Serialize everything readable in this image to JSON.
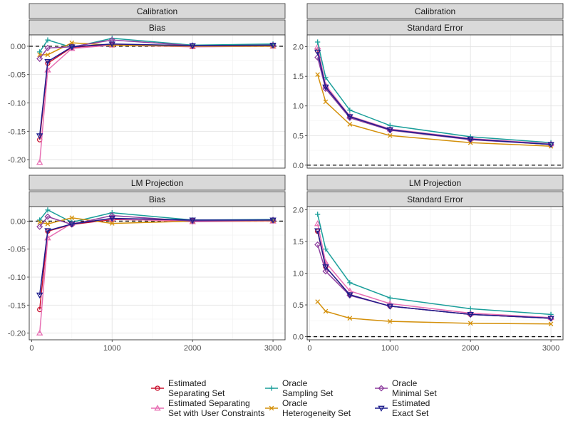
{
  "chart_data": [
    {
      "type": "line",
      "strip_top": "Calibration",
      "strip_sub": "Bias",
      "x": [
        100,
        200,
        500,
        1000,
        2000,
        3000
      ],
      "xticks": [
        0,
        1000,
        2000,
        3000
      ],
      "xtick_labels": [
        "0",
        "1000",
        "2000",
        "3000"
      ],
      "xlim": [
        -30,
        3150
      ],
      "ylim": [
        -0.215,
        0.02
      ],
      "yticks": [
        0.0,
        -0.05,
        -0.1,
        -0.15,
        -0.2
      ],
      "ytick_labels": [
        "0.00",
        "-0.05",
        "-0.10",
        "-0.15",
        "-0.20"
      ],
      "hline": 0,
      "grid": true,
      "series": [
        {
          "key": "est_sep",
          "values": [
            -0.165,
            -0.03,
            -0.002,
            0.003,
            0.0,
            0.001
          ]
        },
        {
          "key": "est_sep_user",
          "values": [
            -0.205,
            -0.042,
            -0.004,
            0.002,
            -0.001,
            0.0
          ]
        },
        {
          "key": "oracle_samp",
          "values": [
            -0.01,
            0.011,
            -0.002,
            0.014,
            0.002,
            0.004
          ]
        },
        {
          "key": "oracle_het",
          "values": [
            -0.015,
            -0.015,
            0.006,
            0.002,
            0.0,
            0.0
          ]
        },
        {
          "key": "oracle_min",
          "values": [
            -0.022,
            -0.003,
            -0.001,
            0.011,
            0.001,
            0.002
          ]
        },
        {
          "key": "est_exact",
          "values": [
            -0.158,
            -0.027,
            -0.001,
            0.004,
            0.001,
            0.002
          ]
        }
      ]
    },
    {
      "type": "line",
      "strip_top": "Calibration",
      "strip_sub": "Standard Error",
      "x": [
        100,
        200,
        500,
        1000,
        2000,
        3000
      ],
      "xticks": [
        0,
        1000,
        2000,
        3000
      ],
      "xtick_labels": [
        "0",
        "1000",
        "2000",
        "3000"
      ],
      "xlim": [
        -30,
        3150
      ],
      "ylim": [
        -0.05,
        2.2
      ],
      "yticks": [
        0.0,
        0.5,
        1.0,
        1.5,
        2.0
      ],
      "ytick_labels": [
        "0.0",
        "0.5",
        "1.0",
        "1.5",
        "2.0"
      ],
      "hline": 0,
      "grid": true,
      "series": [
        {
          "key": "est_sep",
          "values": [
            1.93,
            1.33,
            0.82,
            0.6,
            0.44,
            0.35
          ]
        },
        {
          "key": "est_sep_user",
          "values": [
            2.0,
            1.35,
            0.83,
            0.61,
            0.45,
            0.36
          ]
        },
        {
          "key": "oracle_samp",
          "values": [
            2.08,
            1.48,
            0.93,
            0.67,
            0.48,
            0.38
          ]
        },
        {
          "key": "oracle_het",
          "values": [
            1.53,
            1.07,
            0.69,
            0.5,
            0.38,
            0.32
          ]
        },
        {
          "key": "oracle_min",
          "values": [
            1.82,
            1.29,
            0.8,
            0.59,
            0.43,
            0.35
          ]
        },
        {
          "key": "est_exact",
          "values": [
            1.91,
            1.32,
            0.82,
            0.6,
            0.44,
            0.35
          ]
        }
      ]
    },
    {
      "type": "line",
      "strip_top": "LM Projection",
      "strip_sub": "Bias",
      "x": [
        100,
        200,
        500,
        1000,
        2000,
        3000
      ],
      "xticks": [
        0,
        1000,
        2000,
        3000
      ],
      "xtick_labels": [
        "0",
        "1000",
        "2000",
        "3000"
      ],
      "xlim": [
        -30,
        3150
      ],
      "ylim": [
        -0.212,
        0.026
      ],
      "yticks": [
        0.0,
        -0.05,
        -0.1,
        -0.15,
        -0.2
      ],
      "ytick_labels": [
        "0.00",
        "-0.05",
        "-0.10",
        "-0.15",
        "-0.20"
      ],
      "hline": 0,
      "grid": true,
      "series": [
        {
          "key": "est_sep",
          "values": [
            -0.158,
            -0.018,
            -0.006,
            0.003,
            0.001,
            0.001
          ]
        },
        {
          "key": "est_sep_user",
          "values": [
            -0.2,
            -0.03,
            -0.004,
            0.004,
            -0.001,
            0.0
          ]
        },
        {
          "key": "oracle_samp",
          "values": [
            0.002,
            0.02,
            -0.002,
            0.015,
            0.002,
            0.003
          ]
        },
        {
          "key": "oracle_het",
          "values": [
            -0.002,
            -0.005,
            0.006,
            -0.004,
            0.0,
            0.001
          ]
        },
        {
          "key": "oracle_min",
          "values": [
            -0.01,
            0.008,
            -0.006,
            0.01,
            0.0,
            0.002
          ]
        },
        {
          "key": "est_exact",
          "values": [
            -0.132,
            -0.017,
            -0.005,
            0.005,
            0.002,
            0.002
          ]
        }
      ]
    },
    {
      "type": "line",
      "strip_top": "LM Projection",
      "strip_sub": "Standard Error",
      "x": [
        100,
        200,
        500,
        1000,
        2000,
        3000
      ],
      "xticks": [
        0,
        1000,
        2000,
        3000
      ],
      "xtick_labels": [
        "0",
        "1000",
        "2000",
        "3000"
      ],
      "xlim": [
        -30,
        3150
      ],
      "ylim": [
        -0.05,
        2.05
      ],
      "yticks": [
        0.0,
        0.5,
        1.0,
        1.5,
        2.0
      ],
      "ytick_labels": [
        "0.0",
        "0.5",
        "1.0",
        "1.5",
        "2.0"
      ],
      "hline": 0,
      "grid": true,
      "series": [
        {
          "key": "est_sep",
          "values": [
            1.66,
            1.1,
            0.66,
            0.48,
            0.35,
            0.29
          ]
        },
        {
          "key": "est_sep_user",
          "values": [
            1.78,
            1.17,
            0.72,
            0.52,
            0.37,
            0.3
          ]
        },
        {
          "key": "oracle_samp",
          "values": [
            1.93,
            1.38,
            0.85,
            0.61,
            0.44,
            0.35
          ]
        },
        {
          "key": "oracle_het",
          "values": [
            0.55,
            0.4,
            0.29,
            0.24,
            0.21,
            0.2
          ]
        },
        {
          "key": "oracle_min",
          "values": [
            1.45,
            1.03,
            0.65,
            0.48,
            0.35,
            0.29
          ]
        },
        {
          "key": "est_exact",
          "values": [
            1.67,
            1.1,
            0.66,
            0.48,
            0.35,
            0.29
          ]
        }
      ]
    }
  ],
  "legend": {
    "placement": "bottom",
    "items": [
      {
        "key": "est_sep",
        "line1": "Estimated",
        "line2": "Separating Set",
        "color": "#c8102e",
        "shape": "circle"
      },
      {
        "key": "est_sep_user",
        "line1": "Estimated Separating",
        "line2": "Set with User Constraints",
        "color": "#e76fb3",
        "shape": "triangle-up"
      },
      {
        "key": "oracle_samp",
        "line1": "Oracle",
        "line2": "Sampling Set",
        "color": "#1a9e9a",
        "shape": "plus"
      },
      {
        "key": "oracle_het",
        "line1": "Oracle",
        "line2": "Heterogeneity Set",
        "color": "#d4900a",
        "shape": "cross"
      },
      {
        "key": "oracle_min",
        "line1": "Oracle",
        "line2": "Minimal Set",
        "color": "#8e3f9e",
        "shape": "diamond"
      },
      {
        "key": "est_exact",
        "line1": "Estimated",
        "line2": "Exact Set",
        "color": "#1c1c8c",
        "shape": "triangle-down"
      }
    ]
  }
}
